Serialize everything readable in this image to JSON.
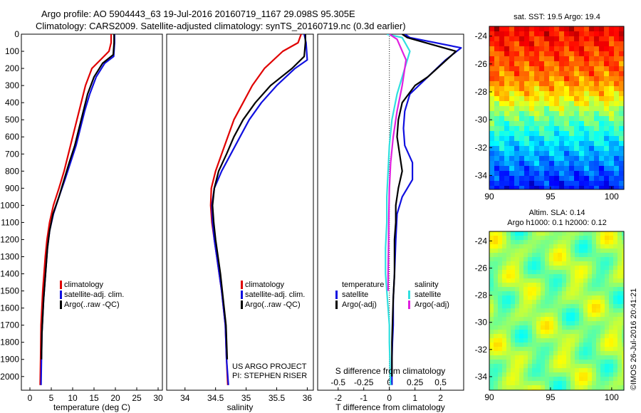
{
  "title_line1": "Argo profile: AO 5904443_63 19-Jul-2016 20160719_1167 29.098S 95.305E",
  "title_line2": "Climatology: CARS2009. Satellite-adjusted climatology: synTS_20160719.nc (0.3d earlier)",
  "side_label": "©IMOS 26-Jul-2016 20:41:21",
  "colors": {
    "climatology": "#e00000",
    "satellite": "#1010e0",
    "argo": "#000000",
    "cyan": "#30e0e0",
    "magenta": "#e020e0"
  },
  "chart_data": [
    {
      "type": "line",
      "xlabel": "temperature (deg C)",
      "xlim": [
        -2,
        31
      ],
      "ylim": [
        2080,
        0
      ],
      "xticks": [
        "0",
        "5",
        "10",
        "15",
        "20",
        "25",
        "30"
      ],
      "yticks": [
        "0",
        "100",
        "200",
        "300",
        "400",
        "500",
        "600",
        "700",
        "800",
        "900",
        "1000",
        "1100",
        "1200",
        "1300",
        "1400",
        "1500",
        "1600",
        "1700",
        "1800",
        "1900",
        "2000"
      ],
      "legend": [
        "climatology",
        "satellite-adj. clim.",
        "Argo(..raw -QC)"
      ],
      "series": [
        {
          "name": "climatology",
          "color": "climatology",
          "x": [
            19.0,
            19.0,
            18.5,
            16.5,
            14.5,
            13.0,
            12.0,
            11.0,
            10.0,
            9.0,
            8.0,
            6.8,
            5.5,
            4.6,
            4.0,
            3.6,
            3.3,
            3.0,
            2.8,
            2.6,
            2.5,
            2.4
          ],
          "y": [
            0,
            50,
            100,
            150,
            200,
            300,
            400,
            500,
            600,
            700,
            800,
            900,
            1000,
            1100,
            1200,
            1300,
            1400,
            1500,
            1600,
            1700,
            1900,
            2050
          ]
        },
        {
          "name": "satellite-adj. clim.",
          "color": "satellite",
          "x": [
            19.8,
            19.8,
            19.6,
            17.5,
            15.5,
            14.0,
            12.8,
            11.8,
            10.8,
            9.5,
            8.2,
            6.8,
            5.5,
            4.6,
            4.1,
            3.8,
            3.5,
            3.2,
            3.0,
            2.8,
            2.7,
            2.6
          ],
          "y": [
            0,
            50,
            130,
            170,
            250,
            350,
            450,
            550,
            650,
            750,
            850,
            950,
            1050,
            1150,
            1250,
            1350,
            1450,
            1550,
            1650,
            1750,
            1900,
            2050
          ]
        },
        {
          "name": "Argo(..raw -QC)",
          "color": "argo",
          "x": [
            19.7,
            19.7,
            19.5,
            17.0,
            15.0,
            13.5,
            12.5,
            11.5,
            10.5,
            9.2,
            8.0,
            6.8,
            5.4,
            4.6,
            4.1,
            3.8,
            3.5,
            3.2,
            3.0,
            2.8,
            2.7
          ],
          "y": [
            0,
            50,
            120,
            170,
            250,
            350,
            450,
            550,
            650,
            750,
            850,
            950,
            1050,
            1150,
            1250,
            1350,
            1450,
            1550,
            1650,
            1750,
            1900
          ]
        }
      ]
    },
    {
      "type": "line",
      "xlabel": "salinity",
      "xlim": [
        33.7,
        36.1
      ],
      "ylim": [
        2080,
        0
      ],
      "xticks": [
        "34",
        "34.5",
        "35",
        "35.5",
        "36"
      ],
      "legend": [
        "climatology",
        "satellite-adj. clim.",
        "Argo(..raw -QC)"
      ],
      "annotation": [
        "US ARGO PROJECT",
        "PI: STEPHEN RISER"
      ],
      "series": [
        {
          "name": "climatology",
          "color": "climatology",
          "x": [
            35.9,
            35.85,
            35.6,
            35.3,
            35.1,
            34.95,
            34.8,
            34.7,
            34.6,
            34.5,
            34.43,
            34.42,
            34.44,
            34.48,
            34.52,
            34.56,
            34.6,
            34.63,
            34.66,
            34.68,
            34.7
          ],
          "y": [
            0,
            50,
            100,
            200,
            300,
            400,
            500,
            600,
            700,
            800,
            900,
            1000,
            1100,
            1200,
            1300,
            1400,
            1500,
            1600,
            1700,
            1900,
            2050
          ]
        },
        {
          "name": "satellite-adj. clim.",
          "color": "satellite",
          "x": [
            35.95,
            35.98,
            36.0,
            35.8,
            35.5,
            35.25,
            35.05,
            34.9,
            34.75,
            34.6,
            34.48,
            34.44,
            34.45,
            34.48,
            34.52,
            34.56,
            34.6,
            34.63,
            34.66,
            34.68,
            34.71
          ],
          "y": [
            0,
            50,
            150,
            200,
            300,
            400,
            500,
            600,
            700,
            800,
            900,
            1000,
            1100,
            1200,
            1300,
            1400,
            1500,
            1600,
            1700,
            1900,
            2050
          ]
        },
        {
          "name": "Argo(..raw -QC)",
          "color": "argo",
          "x": [
            35.97,
            35.97,
            35.95,
            35.75,
            35.4,
            35.15,
            34.95,
            34.8,
            34.68,
            34.55,
            34.48,
            34.45,
            34.47,
            34.5,
            34.54,
            34.58,
            34.61,
            34.64,
            34.67,
            34.69
          ],
          "y": [
            0,
            50,
            130,
            200,
            300,
            400,
            500,
            600,
            700,
            800,
            900,
            1000,
            1100,
            1200,
            1300,
            1400,
            1500,
            1600,
            1700,
            1900
          ]
        }
      ]
    },
    {
      "type": "line",
      "xlabel": "T difference from climatology",
      "xlabel_top": "S difference from climatology",
      "xlim": [
        -2.8,
        2.9
      ],
      "ylim": [
        2080,
        0
      ],
      "xticks": [
        "-2",
        "-1",
        "0",
        "1",
        "2"
      ],
      "xticks_top": [
        "-0.5",
        "-0.25",
        "0",
        "0.25",
        "0.5"
      ],
      "legend_left_title": "temperature",
      "legend_right_title": "salinity",
      "legend_left": [
        "satellite",
        "Argo(-adj)"
      ],
      "legend_right": [
        "satellite",
        "Argo(-adj)"
      ],
      "series": [
        {
          "name": "satellite",
          "color": "satellite",
          "x": [
            0.6,
            0.8,
            2.8,
            2.2,
            1.5,
            0.8,
            0.6,
            0.55,
            0.6,
            0.9,
            0.9,
            0.5,
            0.3,
            0.25,
            0.2,
            0.15,
            0.15,
            0.12,
            0.1,
            0.1,
            0.1
          ],
          "y": [
            0,
            20,
            80,
            150,
            250,
            350,
            450,
            550,
            650,
            750,
            850,
            950,
            1050,
            1200,
            1400,
            1550,
            1700,
            1800,
            1900,
            2000,
            2050
          ]
        },
        {
          "name": "Argo(-adj)",
          "color": "argo",
          "x": [
            0.5,
            0.7,
            2.6,
            1.5,
            1.0,
            0.5,
            0.35,
            0.3,
            0.4,
            0.5,
            0.35,
            0.25,
            0.25,
            0.2,
            0.2,
            0.15,
            0.12,
            0.1,
            0.1,
            0.1
          ],
          "y": [
            0,
            20,
            100,
            250,
            300,
            400,
            500,
            600,
            700,
            800,
            900,
            1000,
            1100,
            1200,
            1400,
            1550,
            1700,
            1800,
            1900,
            2000
          ]
        },
        {
          "name": "satellite",
          "color": "cyan",
          "x": [
            -0.1,
            0.5,
            0.8,
            0.6,
            0.3,
            0.1,
            0.0,
            -0.05,
            -0.1,
            -0.1,
            -0.15,
            -0.15,
            -0.1,
            -0.05,
            0.0,
            0.0,
            0.02,
            0.03,
            0.05
          ],
          "y": [
            0,
            20,
            100,
            200,
            350,
            500,
            650,
            800,
            950,
            1100,
            1250,
            1400,
            1500,
            1600,
            1700,
            1800,
            1900,
            2000,
            2050
          ]
        },
        {
          "name": "Argo(-adj)",
          "color": "magenta",
          "x": [
            0.0,
            0.3,
            0.65,
            0.5,
            0.3,
            0.15,
            0.05,
            0.0,
            -0.02,
            -0.03,
            -0.05,
            -0.05
          ],
          "y": [
            0,
            30,
            150,
            300,
            450,
            600,
            750,
            900,
            1050,
            1200,
            1400,
            1500
          ]
        }
      ]
    },
    {
      "type": "heatmap",
      "title": "sat. SST: 19.5 Argo: 19.4",
      "xlim": [
        90,
        101
      ],
      "ylim": [
        -35,
        -23.3
      ],
      "xticks": [
        "90",
        "95",
        "100"
      ],
      "yticks": [
        "-24",
        "-26",
        "-28",
        "-30",
        "-32",
        "-34"
      ],
      "colorscale": "jet",
      "lat_profile": {
        "lat": [
          -23.3,
          -25,
          -27,
          -28.5,
          -29.5,
          -31,
          -33,
          -35
        ],
        "value": [
          0.88,
          0.82,
          0.74,
          0.62,
          0.5,
          0.38,
          0.25,
          0.12
        ]
      }
    },
    {
      "type": "heatmap",
      "title_line1": "Altim. SLA: 0.14",
      "title_line2": "Argo h1000: 0.1 h2000: 0.12",
      "xlim": [
        90,
        101
      ],
      "ylim": [
        -35,
        -23.3
      ],
      "xticks": [
        "90",
        "95",
        "100"
      ],
      "yticks": [
        "-24",
        "-26",
        "-28",
        "-30",
        "-32",
        "-34"
      ],
      "colorscale": "jet",
      "value_range": [
        0.38,
        0.66
      ]
    }
  ]
}
